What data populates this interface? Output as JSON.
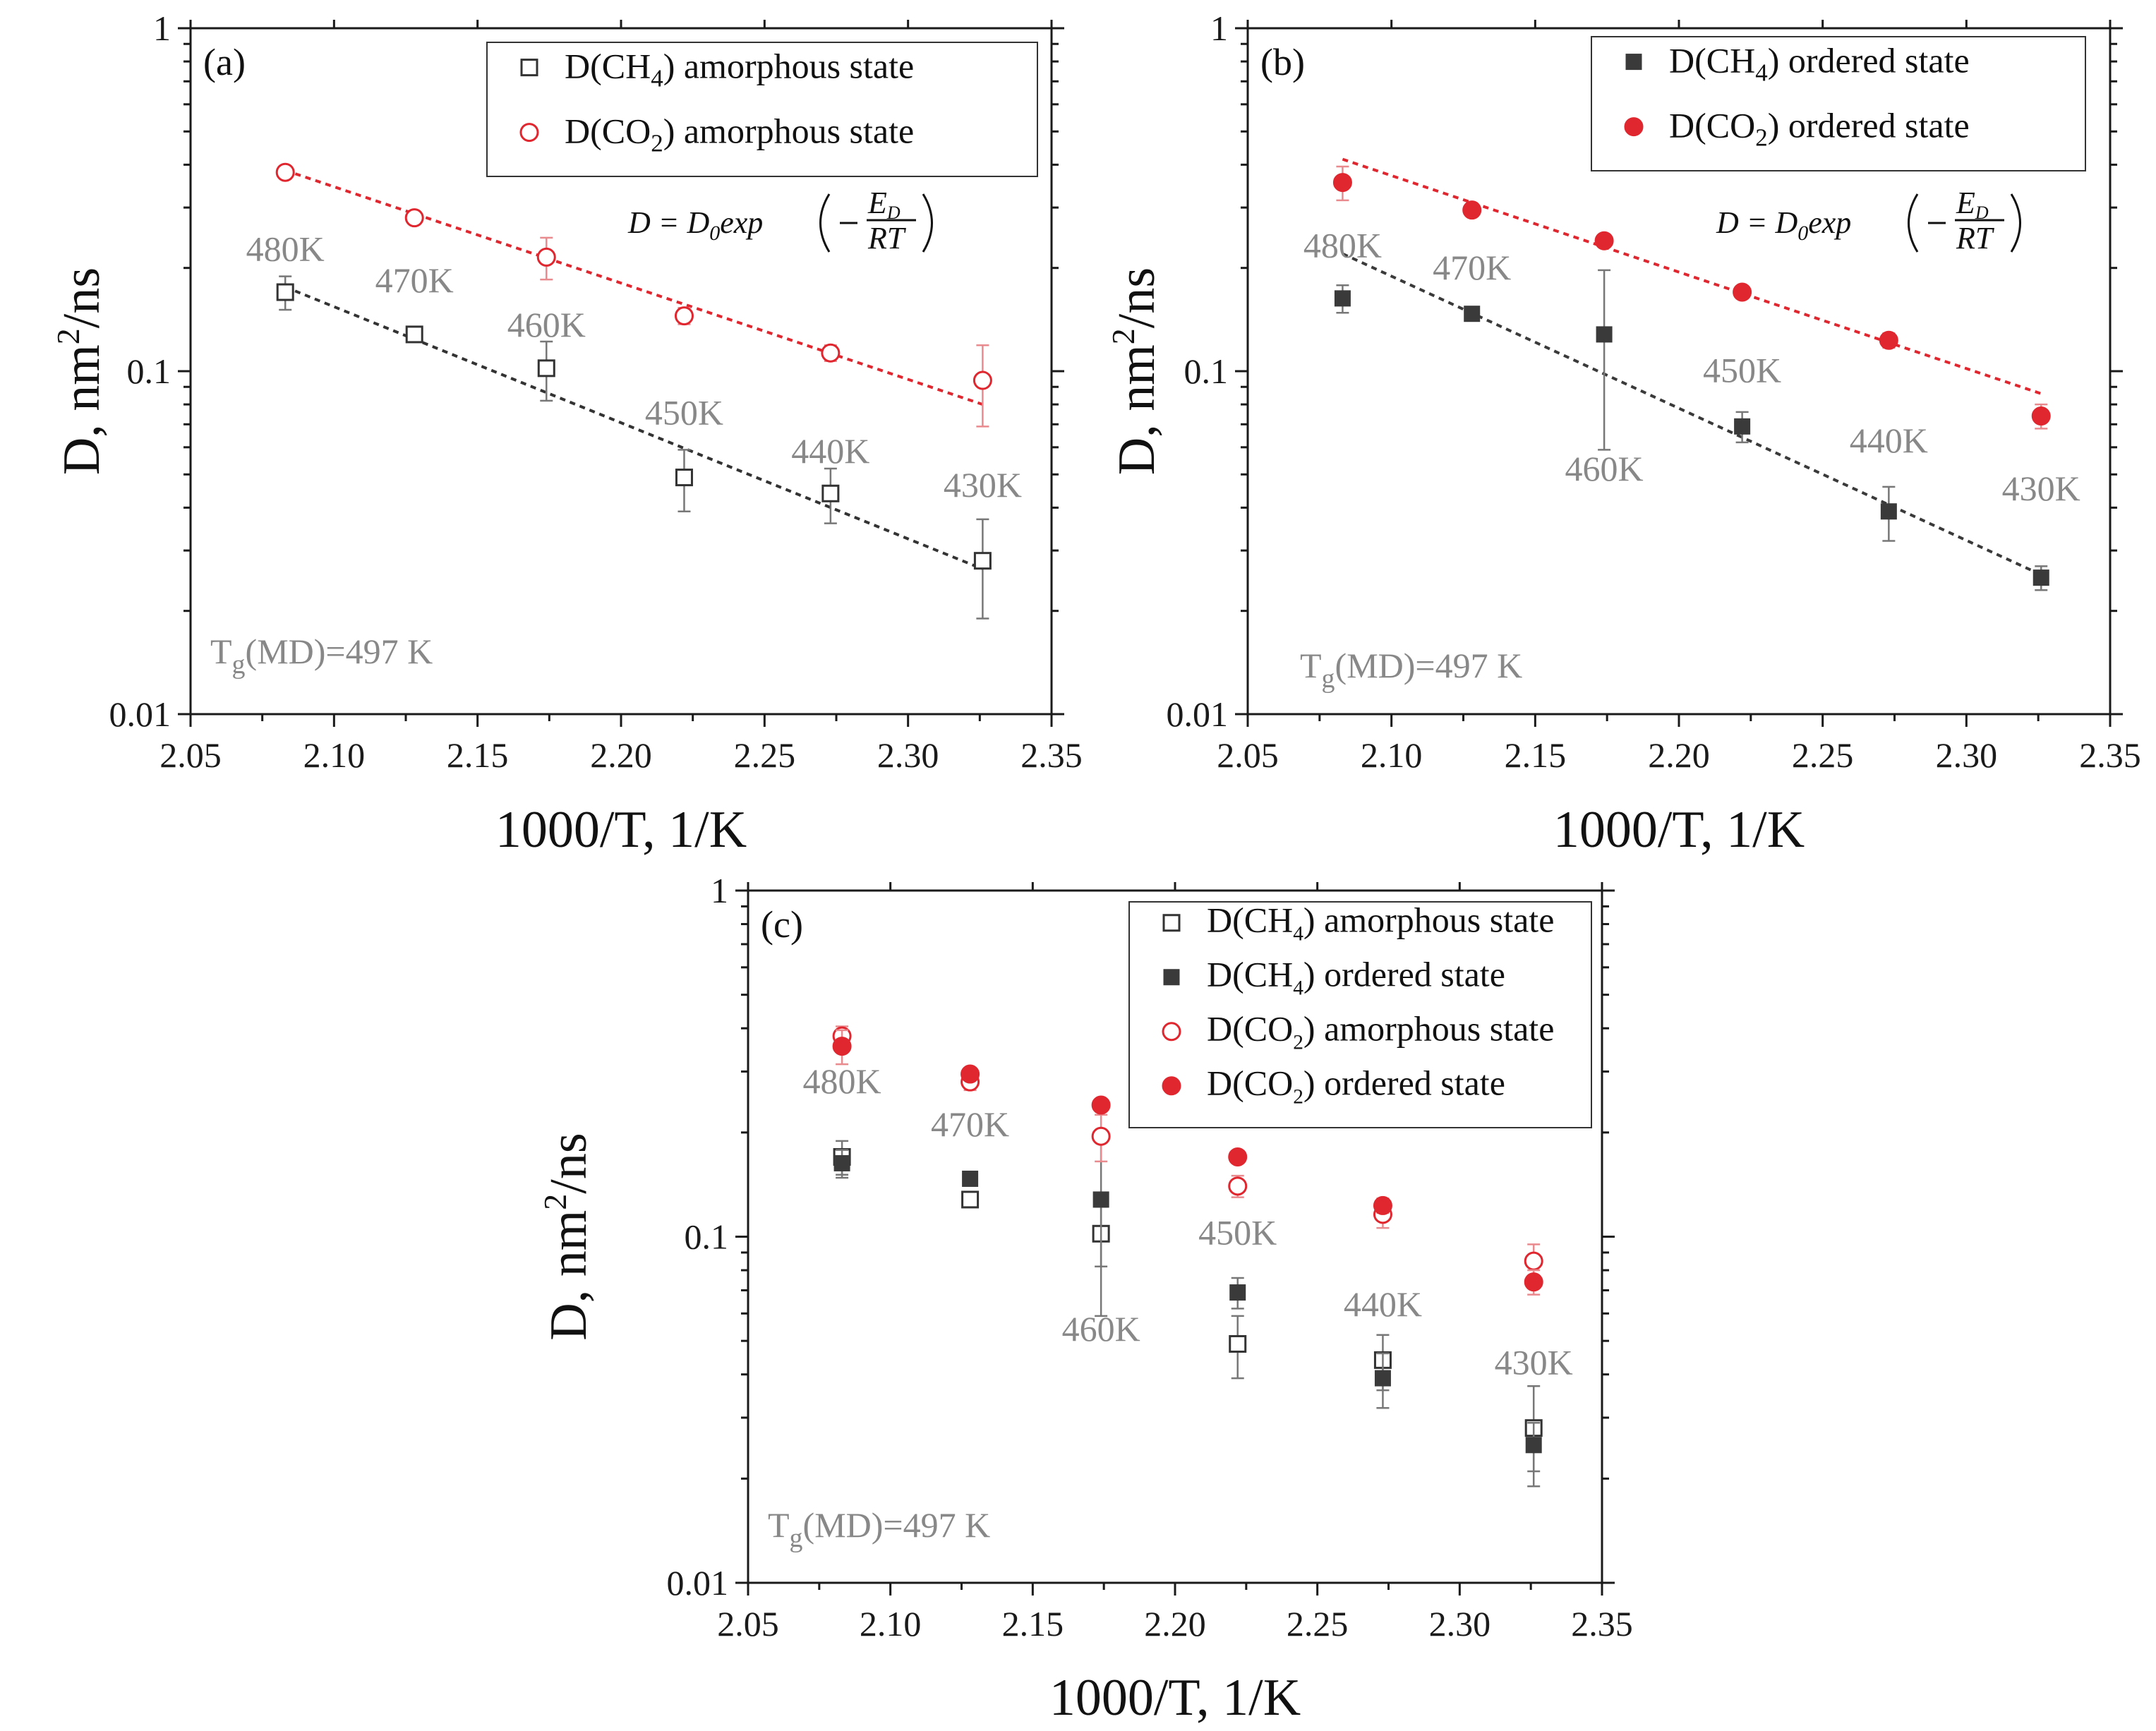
{
  "chart_data": [
    {
      "type": "scatter",
      "panel_label": "(a)",
      "xlabel": "1000/T, 1/K",
      "ylabel": "D, nm²/ns",
      "ylabel_parts": {
        "main": "D, nm",
        "sup": "2",
        "tail": "/ns"
      },
      "xlim": [
        2.05,
        2.35
      ],
      "ylim": [
        0.01,
        1
      ],
      "yscale": "log",
      "x_ticks": [
        "2.05",
        "2.10",
        "2.15",
        "2.20",
        "2.25",
        "2.30",
        "2.35"
      ],
      "y_ticks": [
        "0.01",
        "0.1",
        "1"
      ],
      "legend_position": "top-right",
      "equation": {
        "lhs": "D",
        "eq": "=",
        "d0": "D",
        "d0_sub": "0",
        "fn": "exp",
        "num": "E",
        "num_sub": "D",
        "den": "RT"
      },
      "tg_annotation": {
        "main": "T",
        "sub": "g",
        "rest": "(MD)=497 K"
      },
      "series": [
        {
          "name": "D(CH4) amorphous state",
          "legend": {
            "pre": "D(CH",
            "sub": "4",
            "post": ") amorphous state"
          },
          "marker": "open-square",
          "color": "#333333",
          "x": [
            2.083,
            2.128,
            2.174,
            2.222,
            2.273,
            2.326
          ],
          "y": [
            0.17,
            0.128,
            0.102,
            0.049,
            0.044,
            0.028
          ],
          "err": [
            0.019,
            0.006,
            0.02,
            0.01,
            0.008,
            0.009
          ],
          "fit": {
            "x": [
              2.083,
              2.326
            ],
            "y": [
              0.176,
              0.0265
            ]
          }
        },
        {
          "name": "D(CO2) amorphous state",
          "legend": {
            "pre": "D(CO",
            "sub": "2",
            "post": ") amorphous state"
          },
          "marker": "open-circle",
          "color": "#e0262e",
          "x": [
            2.083,
            2.128,
            2.174,
            2.222,
            2.273,
            2.326
          ],
          "y": [
            0.38,
            0.28,
            0.215,
            0.145,
            0.113,
            0.094
          ],
          "err": [
            0.012,
            0.01,
            0.03,
            0.008,
            0.006,
            0.025
          ],
          "fit": {
            "x": [
              2.083,
              2.326
            ],
            "y": [
              0.385,
              0.08
            ]
          }
        }
      ],
      "annotations": [
        {
          "text": "480K",
          "x": 2.083,
          "y": 0.21
        },
        {
          "text": "470K",
          "x": 2.128,
          "y": 0.17
        },
        {
          "text": "460K",
          "x": 2.174,
          "y": 0.126
        },
        {
          "text": "450K",
          "x": 2.222,
          "y": 0.07
        },
        {
          "text": "440K",
          "x": 2.273,
          "y": 0.054
        },
        {
          "text": "430K",
          "x": 2.326,
          "y": 0.043
        }
      ]
    },
    {
      "type": "scatter",
      "panel_label": "(b)",
      "xlabel": "1000/T, 1/K",
      "ylabel": "D, nm²/ns",
      "ylabel_parts": {
        "main": "D, nm",
        "sup": "2",
        "tail": "/ns"
      },
      "xlim": [
        2.05,
        2.35
      ],
      "ylim": [
        0.01,
        1
      ],
      "yscale": "log",
      "x_ticks": [
        "2.05",
        "2.10",
        "2.15",
        "2.20",
        "2.25",
        "2.30",
        "2.35"
      ],
      "y_ticks": [
        "0.01",
        "0.1",
        "1"
      ],
      "legend_position": "top-right",
      "equation": {
        "lhs": "D",
        "eq": "=",
        "d0": "D",
        "d0_sub": "0",
        "fn": "exp",
        "num": "E",
        "num_sub": "D",
        "den": "RT"
      },
      "tg_annotation": {
        "main": "T",
        "sub": "g",
        "rest": "(MD)=497 K"
      },
      "series": [
        {
          "name": "D(CH4) ordered state",
          "legend": {
            "pre": "D(CH",
            "sub": "4",
            "post": ") ordered state"
          },
          "marker": "filled-square",
          "color": "#3a3a3a",
          "x": [
            2.083,
            2.128,
            2.174,
            2.222,
            2.273,
            2.326
          ],
          "y": [
            0.163,
            0.147,
            0.128,
            0.069,
            0.039,
            0.025
          ],
          "err": [
            0.015,
            0.005,
            0.069,
            0.007,
            0.007,
            0.002
          ],
          "fit": {
            "x": [
              2.083,
              2.326
            ],
            "y": [
              0.22,
              0.0255
            ]
          }
        },
        {
          "name": "D(CO2) ordered state",
          "legend": {
            "pre": "D(CO",
            "sub": "2",
            "post": ") ordered state"
          },
          "marker": "filled-circle",
          "color": "#e0262e",
          "x": [
            2.083,
            2.128,
            2.174,
            2.222,
            2.273,
            2.326
          ],
          "y": [
            0.355,
            0.295,
            0.24,
            0.17,
            0.123,
            0.074
          ],
          "err": [
            0.04,
            0.01,
            0.01,
            0.006,
            0.006,
            0.006
          ],
          "fit": {
            "x": [
              2.083,
              2.326
            ],
            "y": [
              0.415,
              0.086
            ]
          }
        }
      ],
      "annotations": [
        {
          "text": "480K",
          "x": 2.083,
          "y": 0.215
        },
        {
          "text": "470K",
          "x": 2.128,
          "y": 0.185
        },
        {
          "text": "460K",
          "x": 2.174,
          "y": 0.048
        },
        {
          "text": "450K",
          "x": 2.222,
          "y": 0.093
        },
        {
          "text": "440K",
          "x": 2.273,
          "y": 0.058
        },
        {
          "text": "430K",
          "x": 2.326,
          "y": 0.042
        }
      ]
    },
    {
      "type": "scatter",
      "panel_label": "(c)",
      "xlabel": "1000/T, 1/K",
      "ylabel": "D, nm²/ns",
      "ylabel_parts": {
        "main": "D, nm",
        "sup": "2",
        "tail": "/ns"
      },
      "xlim": [
        2.05,
        2.35
      ],
      "ylim": [
        0.01,
        1
      ],
      "yscale": "log",
      "x_ticks": [
        "2.05",
        "2.10",
        "2.15",
        "2.20",
        "2.25",
        "2.30",
        "2.35"
      ],
      "y_ticks": [
        "0.01",
        "0.1",
        "1"
      ],
      "legend_position": "top-right",
      "tg_annotation": {
        "main": "T",
        "sub": "g",
        "rest": "(MD)=497 K"
      },
      "series": [
        {
          "name": "D(CH4) amorphous state",
          "legend": {
            "pre": "D(CH",
            "sub": "4",
            "post": ") amorphous state"
          },
          "marker": "open-square",
          "color": "#333333",
          "x": [
            2.083,
            2.128,
            2.174,
            2.222,
            2.273,
            2.326
          ],
          "y": [
            0.17,
            0.128,
            0.102,
            0.049,
            0.044,
            0.028
          ],
          "err": [
            0.019,
            0.006,
            0.02,
            0.01,
            0.008,
            0.009
          ]
        },
        {
          "name": "D(CH4) ordered state",
          "legend": {
            "pre": "D(CH",
            "sub": "4",
            "post": ") ordered state"
          },
          "marker": "filled-square",
          "color": "#3a3a3a",
          "x": [
            2.083,
            2.128,
            2.174,
            2.222,
            2.273,
            2.326
          ],
          "y": [
            0.163,
            0.147,
            0.128,
            0.069,
            0.039,
            0.025
          ],
          "err": [
            0.015,
            0.005,
            0.069,
            0.007,
            0.007,
            0.004
          ]
        },
        {
          "name": "D(CO2) amorphous state",
          "legend": {
            "pre": "D(CO",
            "sub": "2",
            "post": ") amorphous state"
          },
          "marker": "open-circle",
          "color": "#e0262e",
          "x": [
            2.083,
            2.128,
            2.174,
            2.222,
            2.273,
            2.326
          ],
          "y": [
            0.38,
            0.28,
            0.195,
            0.14,
            0.116,
            0.085
          ],
          "err": [
            0.025,
            0.015,
            0.03,
            0.01,
            0.01,
            0.01
          ]
        },
        {
          "name": "D(CO2) ordered state",
          "legend": {
            "pre": "D(CO",
            "sub": "2",
            "post": ") ordered state"
          },
          "marker": "filled-circle",
          "color": "#e0262e",
          "x": [
            2.083,
            2.128,
            2.174,
            2.222,
            2.273,
            2.326
          ],
          "y": [
            0.355,
            0.295,
            0.24,
            0.17,
            0.123,
            0.074
          ],
          "err": [
            0.04,
            0.01,
            0.01,
            0.006,
            0.006,
            0.006
          ]
        }
      ],
      "annotations": [
        {
          "text": "480K",
          "x": 2.083,
          "y": 0.26
        },
        {
          "text": "470K",
          "x": 2.128,
          "y": 0.195
        },
        {
          "text": "460K",
          "x": 2.174,
          "y": 0.05
        },
        {
          "text": "450K",
          "x": 2.222,
          "y": 0.095
        },
        {
          "text": "440K",
          "x": 2.273,
          "y": 0.059
        },
        {
          "text": "430K",
          "x": 2.326,
          "y": 0.04
        }
      ]
    }
  ]
}
